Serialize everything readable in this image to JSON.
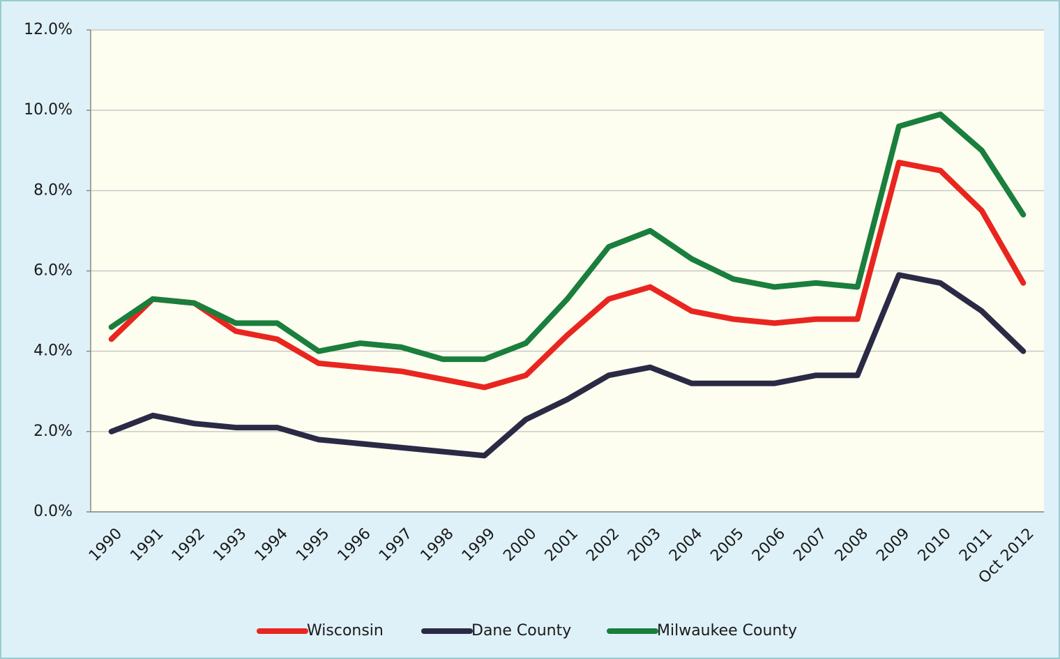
{
  "chart_data": {
    "type": "line",
    "categories": [
      "1990",
      "1991",
      "1992",
      "1993",
      "1994",
      "1995",
      "1996",
      "1997",
      "1998",
      "1999",
      "2000",
      "2001",
      "2002",
      "2003",
      "2004",
      "2005",
      "2006",
      "2007",
      "2008",
      "2009",
      "2010",
      "2011",
      "Oct 2012"
    ],
    "series": [
      {
        "name": "Wisconsin",
        "color": "#e8261f",
        "values": [
          4.3,
          5.3,
          5.2,
          4.5,
          4.3,
          3.7,
          3.6,
          3.5,
          3.3,
          3.1,
          3.4,
          4.4,
          5.3,
          5.6,
          5.0,
          4.8,
          4.7,
          4.8,
          4.8,
          8.7,
          8.5,
          7.5,
          5.7
        ]
      },
      {
        "name": "Dane County",
        "color": "#2b2a45",
        "values": [
          2.0,
          2.4,
          2.2,
          2.1,
          2.1,
          1.8,
          1.7,
          1.6,
          1.5,
          1.4,
          2.3,
          2.8,
          3.4,
          3.6,
          3.2,
          3.2,
          3.2,
          3.4,
          3.4,
          5.9,
          5.7,
          5.0,
          4.0
        ]
      },
      {
        "name": "Milwaukee County",
        "color": "#1a7e3c",
        "values": [
          4.6,
          5.3,
          5.2,
          4.7,
          4.7,
          4.0,
          4.2,
          4.1,
          3.8,
          3.8,
          4.2,
          5.3,
          6.6,
          7.0,
          6.3,
          5.8,
          5.6,
          5.7,
          5.6,
          9.6,
          9.9,
          9.0,
          7.4
        ]
      }
    ],
    "ylim": [
      0,
      12
    ],
    "yticks": [
      {
        "value": 0,
        "label": "0.0%"
      },
      {
        "value": 2,
        "label": "2.0%"
      },
      {
        "value": 4,
        "label": "4.0%"
      },
      {
        "value": 6,
        "label": "6.0%"
      },
      {
        "value": 8,
        "label": "8.0%"
      },
      {
        "value": 10,
        "label": "10.0%"
      },
      {
        "value": 12,
        "label": "12.0%"
      }
    ],
    "grid": true,
    "legend": "bottom"
  }
}
